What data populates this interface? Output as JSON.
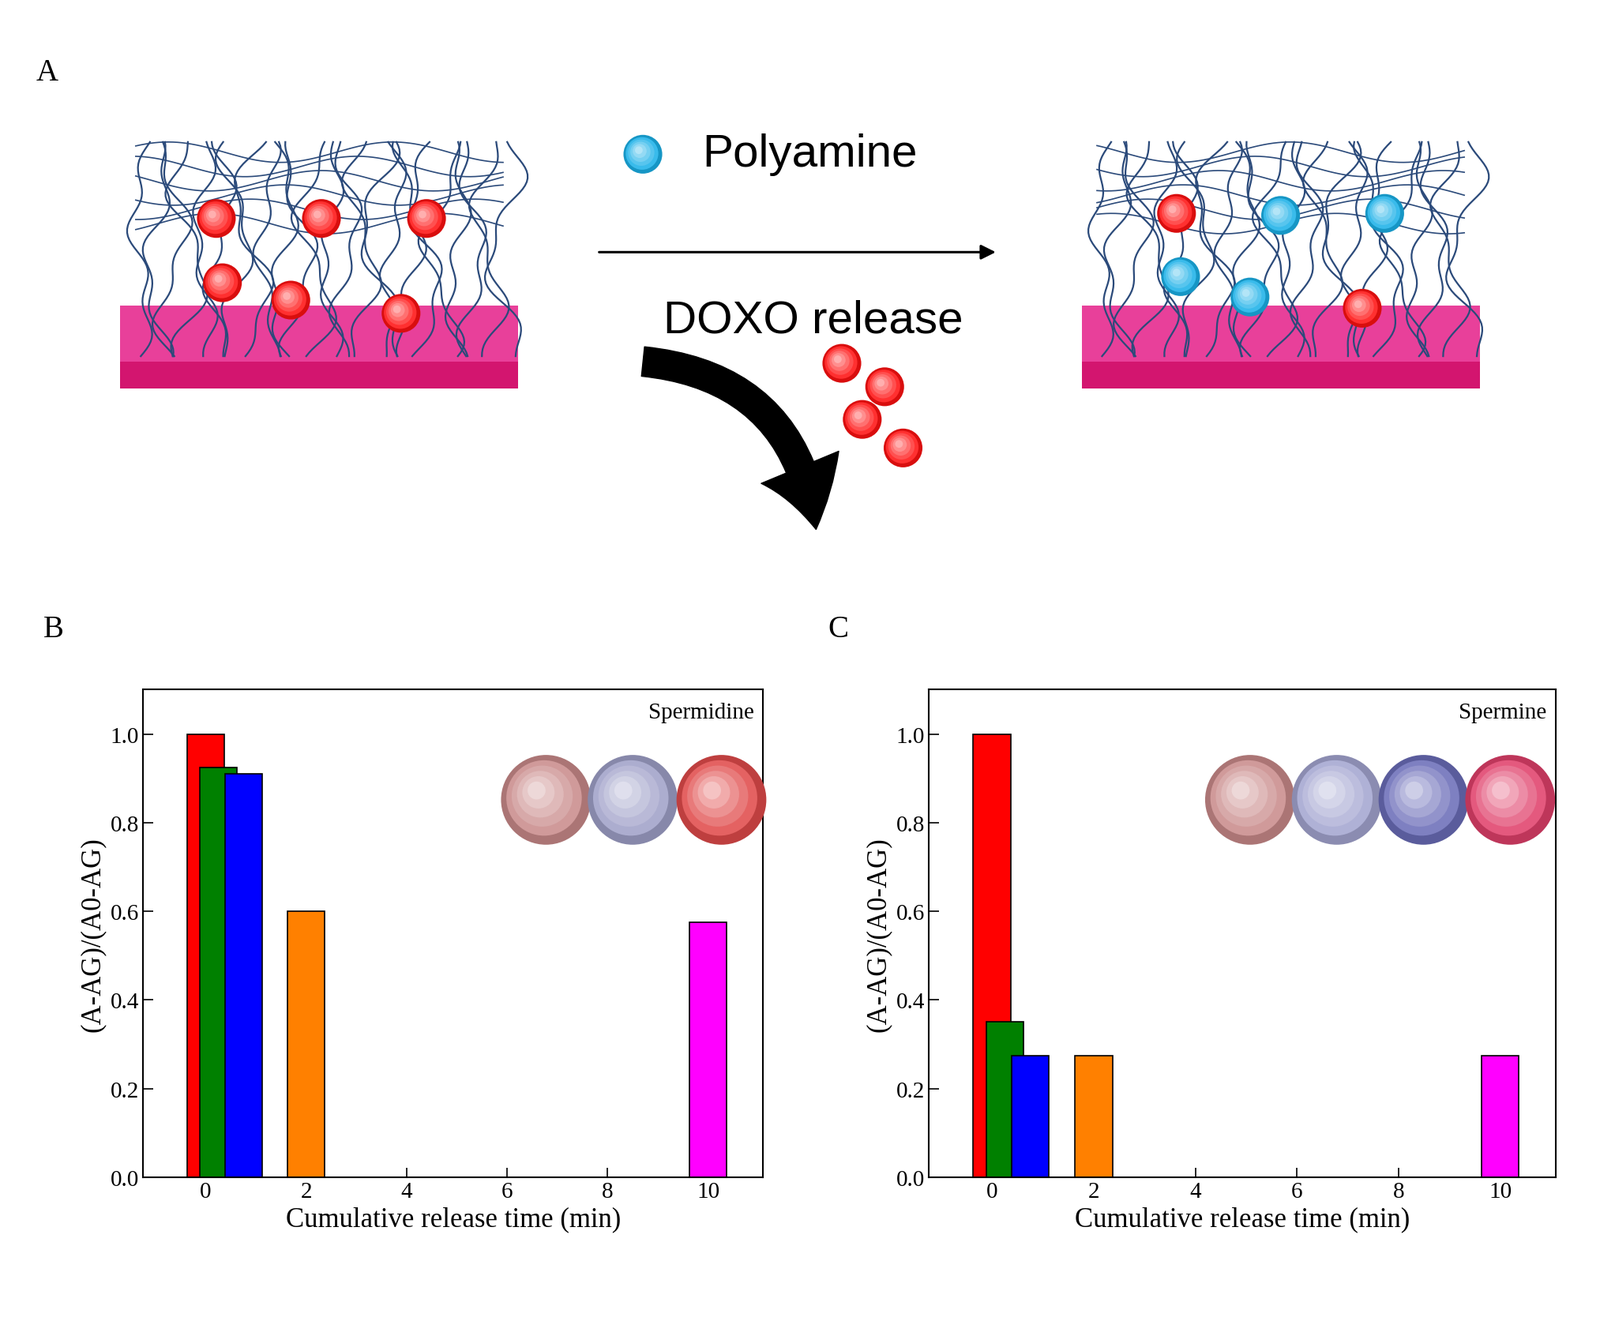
{
  "panel_a": {
    "label": "A",
    "legend_text": "Polyamine",
    "arrow_text": "DOXO release"
  },
  "chart_data": [
    {
      "type": "bar",
      "title": "B",
      "annotations": [
        "Spermidine"
      ],
      "x": [
        0,
        0.25,
        0.75,
        2,
        10
      ],
      "values": [
        1.0,
        0.925,
        0.91,
        0.6,
        0.575
      ],
      "colors": [
        "#ff0000",
        "#008000",
        "#0000ff",
        "#ff8000",
        "#ff00ff"
      ],
      "x_label": "Cumulative release time (min)",
      "y_label": "(A-AG)/(A0-AG)",
      "xlim": [
        -1.25,
        11.1
      ],
      "ylim": [
        0,
        1.1
      ],
      "xticks": [
        0,
        2,
        4,
        6,
        8,
        10
      ],
      "yticks": [
        {
          "value": 0,
          "label": "0.0"
        },
        {
          "value": 0.2,
          "label": "0.2"
        },
        {
          "value": 0.4,
          "label": "0.4"
        },
        {
          "value": 0.6,
          "label": "0.6"
        },
        {
          "value": 0.8,
          "label": "0.8"
        },
        {
          "value": 1,
          "label": "1.0"
        }
      ]
    },
    {
      "type": "bar",
      "title": "C",
      "annotations": [
        "Spermine"
      ],
      "x": [
        0,
        0.25,
        0.75,
        2,
        10
      ],
      "values": [
        1.0,
        0.35,
        0.275,
        0.275,
        0.275
      ],
      "colors": [
        "#ff0000",
        "#008000",
        "#0000ff",
        "#ff8000",
        "#ff00ff"
      ],
      "x_label": "Cumulative release time (min)",
      "y_label": "(A-AG)/(A0-AG)",
      "xlim": [
        -1.25,
        11.1
      ],
      "ylim": [
        0,
        1.1
      ],
      "xticks": [
        0,
        2,
        4,
        6,
        8,
        10
      ],
      "yticks": [
        {
          "value": 0,
          "label": "0.0"
        },
        {
          "value": 0.2,
          "label": "0.2"
        },
        {
          "value": 0.4,
          "label": "0.4"
        },
        {
          "value": 0.6,
          "label": "0.6"
        },
        {
          "value": 0.8,
          "label": "0.8"
        },
        {
          "value": 1,
          "label": "1.0"
        }
      ]
    }
  ]
}
